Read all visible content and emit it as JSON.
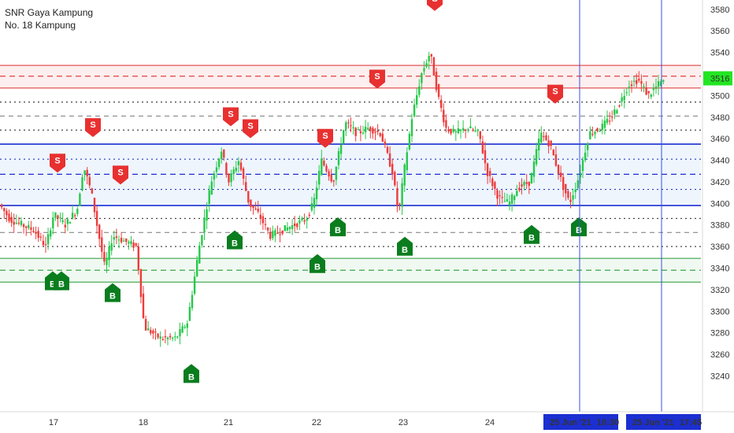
{
  "legend": {
    "line1": "SNR Gaya Kampung",
    "line2": "No. 18 Kampung"
  },
  "colors": {
    "up": "#26c84a",
    "down": "#ef3b3b",
    "buy": "#0a7d1e",
    "sell": "#e83030",
    "resistance": "#e04040",
    "pivot": "#1c2fd1",
    "support": "#3aa64a",
    "crosshair": "#3b4ee6",
    "price_tag": "#22e622"
  },
  "chart_data": {
    "type": "candlestick",
    "title": "",
    "ylim": [
      3225,
      3585
    ],
    "y_ticks": [
      3240,
      3260,
      3280,
      3300,
      3320,
      3340,
      3360,
      3380,
      3400,
      3420,
      3440,
      3460,
      3480,
      3500,
      3520,
      3540,
      3560,
      3580
    ],
    "x_ticks": [
      "17",
      "18",
      "21",
      "22",
      "23",
      "24"
    ],
    "last_price": "3516",
    "crosshair_labels": [
      {
        "date": "25 Jun '21",
        "time": "10:30"
      },
      {
        "date": "25 Jun '21",
        "time": "17:45"
      }
    ],
    "zones": [
      {
        "name": "resistance",
        "top": 3528,
        "bottom": 3507,
        "mid": 3518
      },
      {
        "name": "pivot",
        "top": 3455,
        "bottom": 3398,
        "mid": 3427
      },
      {
        "name": "support",
        "top": 3349,
        "bottom": 3327,
        "mid": 3338
      }
    ],
    "dotted_levels": [
      3494,
      3468,
      3441,
      3413,
      3386,
      3360
    ],
    "dashed_gray_levels": [
      3481,
      3373
    ],
    "path": [
      [
        0,
        3400
      ],
      [
        15,
        3385
      ],
      [
        30,
        3380
      ],
      [
        45,
        3375
      ],
      [
        60,
        3360
      ],
      [
        70,
        3390
      ],
      [
        85,
        3380
      ],
      [
        100,
        3395
      ],
      [
        108,
        3435
      ],
      [
        118,
        3410
      ],
      [
        125,
        3380
      ],
      [
        135,
        3340
      ],
      [
        145,
        3370
      ],
      [
        160,
        3365
      ],
      [
        175,
        3360
      ],
      [
        185,
        3285
      ],
      [
        205,
        3275
      ],
      [
        225,
        3275
      ],
      [
        240,
        3290
      ],
      [
        255,
        3360
      ],
      [
        270,
        3420
      ],
      [
        283,
        3450
      ],
      [
        292,
        3420
      ],
      [
        305,
        3440
      ],
      [
        318,
        3400
      ],
      [
        330,
        3390
      ],
      [
        345,
        3370
      ],
      [
        360,
        3375
      ],
      [
        375,
        3380
      ],
      [
        390,
        3385
      ],
      [
        400,
        3400
      ],
      [
        410,
        3440
      ],
      [
        425,
        3420
      ],
      [
        440,
        3475
      ],
      [
        455,
        3465
      ],
      [
        470,
        3470
      ],
      [
        485,
        3465
      ],
      [
        500,
        3430
      ],
      [
        508,
        3390
      ],
      [
        515,
        3430
      ],
      [
        525,
        3480
      ],
      [
        537,
        3520
      ],
      [
        548,
        3540
      ],
      [
        558,
        3500
      ],
      [
        568,
        3470
      ],
      [
        580,
        3465
      ],
      [
        595,
        3470
      ],
      [
        610,
        3465
      ],
      [
        620,
        3430
      ],
      [
        635,
        3405
      ],
      [
        648,
        3400
      ],
      [
        660,
        3415
      ],
      [
        675,
        3420
      ],
      [
        688,
        3465
      ],
      [
        700,
        3455
      ],
      [
        715,
        3420
      ],
      [
        725,
        3400
      ],
      [
        737,
        3425
      ],
      [
        750,
        3465
      ],
      [
        765,
        3470
      ],
      [
        778,
        3480
      ],
      [
        790,
        3495
      ],
      [
        800,
        3510
      ],
      [
        812,
        3515
      ],
      [
        825,
        3500
      ],
      [
        840,
        3512
      ]
    ],
    "signals": [
      {
        "type": "S",
        "x": 552,
        "price": 3580
      },
      {
        "type": "S",
        "x": 479,
        "price": 3508
      },
      {
        "type": "S",
        "x": 705,
        "price": 3494
      },
      {
        "type": "S",
        "x": 118,
        "price": 3463
      },
      {
        "type": "S",
        "x": 293,
        "price": 3473
      },
      {
        "type": "S",
        "x": 318,
        "price": 3462
      },
      {
        "type": "S",
        "x": 413,
        "price": 3453
      },
      {
        "type": "S",
        "x": 73,
        "price": 3430
      },
      {
        "type": "S",
        "x": 153,
        "price": 3419
      },
      {
        "type": "B",
        "x": 429,
        "price": 3387
      },
      {
        "type": "B",
        "x": 735,
        "price": 3387
      },
      {
        "type": "B",
        "x": 675,
        "price": 3380
      },
      {
        "type": "B",
        "x": 298,
        "price": 3375
      },
      {
        "type": "B",
        "x": 514,
        "price": 3369
      },
      {
        "type": "B",
        "x": 403,
        "price": 3353
      },
      {
        "type": "B",
        "x": 67,
        "price": 3337
      },
      {
        "type": "B",
        "x": 78,
        "price": 3337
      },
      {
        "type": "B",
        "x": 143,
        "price": 3326
      },
      {
        "type": "B",
        "x": 243,
        "price": 3251
      }
    ]
  }
}
